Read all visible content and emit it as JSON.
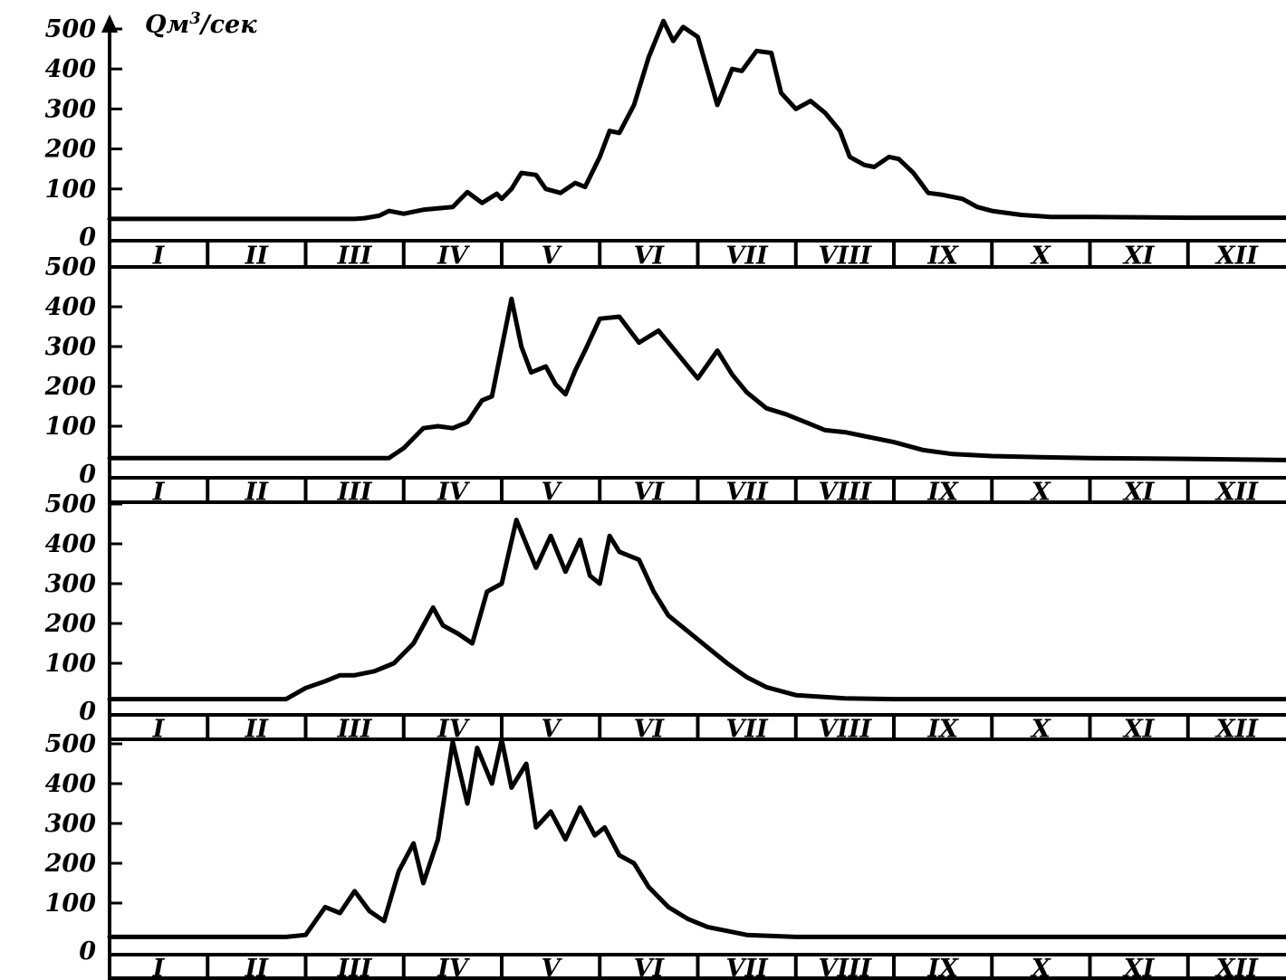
{
  "chart_data": [
    {
      "type": "line",
      "ylabel": "Qм³/сек",
      "yticks": [
        "0",
        "100",
        "200",
        "300",
        "400",
        "500"
      ],
      "categories": [
        "I",
        "II",
        "III",
        "IV",
        "V",
        "VI",
        "VII",
        "VIII",
        "IX",
        "X",
        "XI",
        "XII"
      ],
      "ylim": [
        0,
        520
      ],
      "x": [
        1,
        3.5,
        3.6,
        3.75,
        3.85,
        4.0,
        4.2,
        4.5,
        4.65,
        4.8,
        4.95,
        5.0,
        5.1,
        5.2,
        5.35,
        5.45,
        5.6,
        5.75,
        5.85,
        6.0,
        6.1,
        6.2,
        6.35,
        6.5,
        6.65,
        6.75,
        6.85,
        7.0,
        7.1,
        7.2,
        7.35,
        7.45,
        7.6,
        7.75,
        7.85,
        8.0,
        8.15,
        8.3,
        8.45,
        8.55,
        8.7,
        8.8,
        8.95,
        9.05,
        9.2,
        9.35,
        9.5,
        9.7,
        9.85,
        10.0,
        10.3,
        10.6,
        11.0,
        12.0,
        13.0
      ],
      "y": [
        25,
        25,
        27,
        33,
        45,
        38,
        48,
        55,
        92,
        65,
        88,
        75,
        100,
        140,
        135,
        100,
        90,
        115,
        105,
        180,
        245,
        240,
        310,
        430,
        520,
        470,
        505,
        480,
        395,
        310,
        400,
        395,
        445,
        440,
        340,
        300,
        320,
        290,
        245,
        180,
        160,
        155,
        180,
        175,
        140,
        90,
        85,
        75,
        55,
        45,
        35,
        30,
        30,
        28,
        28
      ]
    },
    {
      "type": "line",
      "yticks": [
        "0",
        "100",
        "200",
        "300",
        "400",
        "500"
      ],
      "categories": [
        "I",
        "II",
        "III",
        "IV",
        "V",
        "VI",
        "VII",
        "VIII",
        "IX",
        "X",
        "XI",
        "XII"
      ],
      "ylim": [
        0,
        520
      ],
      "x": [
        1,
        3.85,
        4.0,
        4.2,
        4.35,
        4.5,
        4.65,
        4.8,
        4.9,
        5.1,
        5.2,
        5.3,
        5.45,
        5.55,
        5.65,
        5.75,
        5.85,
        6.0,
        6.2,
        6.4,
        6.6,
        6.8,
        7.0,
        7.2,
        7.35,
        7.5,
        7.7,
        7.9,
        8.1,
        8.3,
        8.5,
        8.7,
        9.0,
        9.3,
        9.6,
        10.0,
        10.5,
        11.0,
        12.0,
        13.0
      ],
      "y": [
        20,
        20,
        45,
        95,
        100,
        95,
        110,
        165,
        175,
        420,
        300,
        235,
        250,
        205,
        180,
        240,
        290,
        370,
        375,
        310,
        340,
        280,
        220,
        290,
        230,
        185,
        145,
        130,
        110,
        90,
        85,
        75,
        60,
        40,
        30,
        25,
        22,
        20,
        18,
        15
      ]
    },
    {
      "type": "line",
      "yticks": [
        "0",
        "100",
        "200",
        "300",
        "400",
        "500"
      ],
      "categories": [
        "I",
        "II",
        "III",
        "IV",
        "V",
        "VI",
        "VII",
        "VIII",
        "IX",
        "X",
        "XI",
        "XII"
      ],
      "ylim": [
        0,
        520
      ],
      "x": [
        1,
        2.8,
        3.0,
        3.2,
        3.35,
        3.5,
        3.7,
        3.9,
        4.1,
        4.3,
        4.4,
        4.55,
        4.7,
        4.85,
        5.0,
        5.15,
        5.35,
        5.5,
        5.65,
        5.8,
        5.9,
        6.0,
        6.1,
        6.2,
        6.4,
        6.55,
        6.7,
        6.9,
        7.1,
        7.3,
        7.5,
        7.7,
        8.0,
        8.5,
        9.0,
        10.0,
        11.0,
        12.0,
        13.0
      ],
      "y": [
        10,
        10,
        38,
        55,
        70,
        70,
        80,
        100,
        150,
        240,
        195,
        175,
        150,
        280,
        300,
        460,
        340,
        420,
        330,
        410,
        320,
        300,
        420,
        380,
        360,
        280,
        220,
        180,
        140,
        100,
        65,
        40,
        20,
        12,
        10,
        10,
        10,
        10,
        10
      ]
    },
    {
      "type": "line",
      "yticks": [
        "0",
        "100",
        "200",
        "300",
        "400",
        "500"
      ],
      "categories": [
        "I",
        "II",
        "III",
        "IV",
        "V",
        "VI",
        "VII",
        "VIII",
        "IX",
        "X",
        "XI",
        "XII"
      ],
      "ylim": [
        0,
        520
      ],
      "x": [
        1,
        2.8,
        3.0,
        3.2,
        3.35,
        3.5,
        3.65,
        3.8,
        3.95,
        4.1,
        4.2,
        4.35,
        4.5,
        4.65,
        4.75,
        4.9,
        5.0,
        5.1,
        5.25,
        5.35,
        5.5,
        5.65,
        5.8,
        5.95,
        6.05,
        6.2,
        6.35,
        6.5,
        6.7,
        6.9,
        7.1,
        7.3,
        7.5,
        8.0,
        9.0,
        10.0,
        11.0,
        12.0,
        13.0
      ],
      "y": [
        15,
        15,
        20,
        90,
        75,
        130,
        80,
        55,
        180,
        250,
        150,
        260,
        505,
        350,
        490,
        400,
        510,
        390,
        450,
        290,
        330,
        260,
        340,
        270,
        290,
        220,
        200,
        140,
        90,
        60,
        40,
        30,
        20,
        15,
        15,
        15,
        15,
        15,
        15
      ]
    }
  ]
}
